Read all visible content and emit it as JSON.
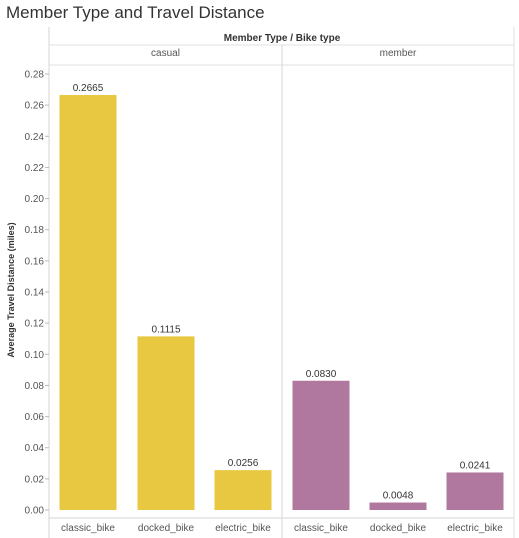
{
  "chart_data": {
    "type": "bar",
    "title": "Member Type and Travel Distance",
    "column_header": "Member Type / Bike type",
    "ylabel": "Average Travel Distance (miles)",
    "ylim": [
      0,
      0.28
    ],
    "yticks": [
      0.0,
      0.02,
      0.04,
      0.06,
      0.08,
      0.1,
      0.12,
      0.14,
      0.16,
      0.18,
      0.2,
      0.22,
      0.24,
      0.26,
      0.28
    ],
    "ytick_labels": [
      "0.00",
      "0.02",
      "0.04",
      "0.06",
      "0.08",
      "0.10",
      "0.12",
      "0.14",
      "0.16",
      "0.18",
      "0.20",
      "0.22",
      "0.24",
      "0.26",
      "0.28"
    ],
    "grid": false,
    "groups": [
      {
        "name": "casual",
        "color": "#E8C840",
        "categories": [
          "classic_bike",
          "docked_bike",
          "electric_bike"
        ],
        "values": [
          0.2665,
          0.1115,
          0.0256
        ],
        "value_labels": [
          "0.2665",
          "0.1115",
          "0.0256"
        ]
      },
      {
        "name": "member",
        "color": "#B0789E",
        "categories": [
          "classic_bike",
          "docked_bike",
          "electric_bike"
        ],
        "values": [
          0.083,
          0.0048,
          0.0241
        ],
        "value_labels": [
          "0.0830",
          "0.0048",
          "0.0241"
        ]
      }
    ]
  }
}
